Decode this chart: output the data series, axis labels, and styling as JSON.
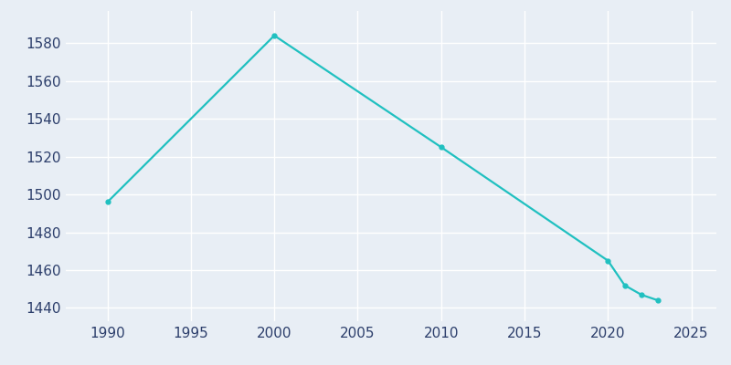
{
  "years": [
    1990,
    2000,
    2010,
    2020,
    2021,
    2022,
    2023
  ],
  "population": [
    1496,
    1584,
    1525,
    1465,
    1452,
    1447,
    1444
  ],
  "line_color": "#20c0c0",
  "background_color": "#e8eef5",
  "grid_color": "#ffffff",
  "text_color": "#2c3e6b",
  "xlim": [
    1987.5,
    2026.5
  ],
  "ylim": [
    1433,
    1597
  ],
  "yticks": [
    1440,
    1460,
    1480,
    1500,
    1520,
    1540,
    1560,
    1580
  ],
  "xticks": [
    1990,
    1995,
    2000,
    2005,
    2010,
    2015,
    2020,
    2025
  ],
  "line_width": 1.6,
  "marker": "o",
  "marker_size": 3.5
}
